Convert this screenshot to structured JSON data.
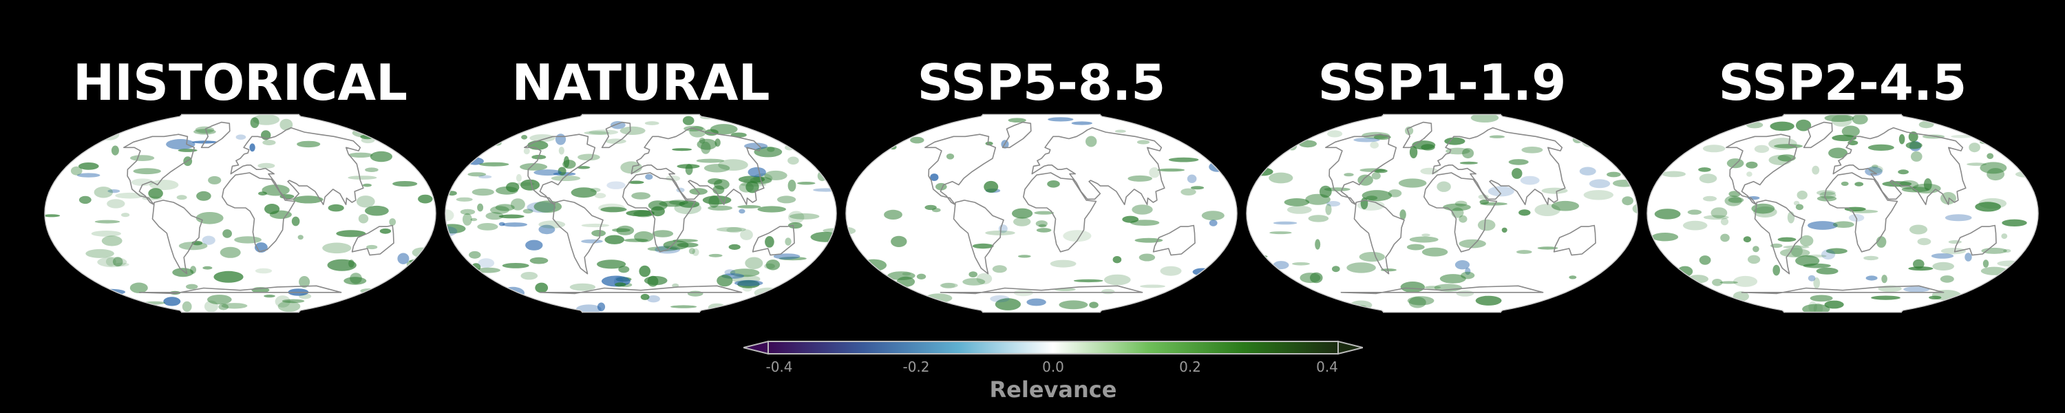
{
  "panels": [
    {
      "title": "HISTORICAL"
    },
    {
      "title": "NATURAL"
    },
    {
      "title": "SSP5-8.5"
    },
    {
      "title": "SSP1-1.9"
    },
    {
      "title": "SSP2-4.5"
    }
  ],
  "colorbar": {
    "label": "Relevance",
    "ticks": [
      "-0.4",
      "-0.2",
      "0.0",
      "0.2",
      "0.4"
    ],
    "range": [
      -0.45,
      0.45
    ],
    "colors": [
      "#3b0a55",
      "#3a5a9a",
      "#5fb0d0",
      "#ffffff",
      "#6fbf5a",
      "#2a7a1a",
      "#1a2a10"
    ],
    "extend": "both"
  },
  "map": {
    "projection": "Robinson",
    "ocean_color": "#ffffff",
    "coastline_color": "#888888",
    "positive_color": "#2e7d32",
    "negative_color": "#1f5fa8"
  }
}
